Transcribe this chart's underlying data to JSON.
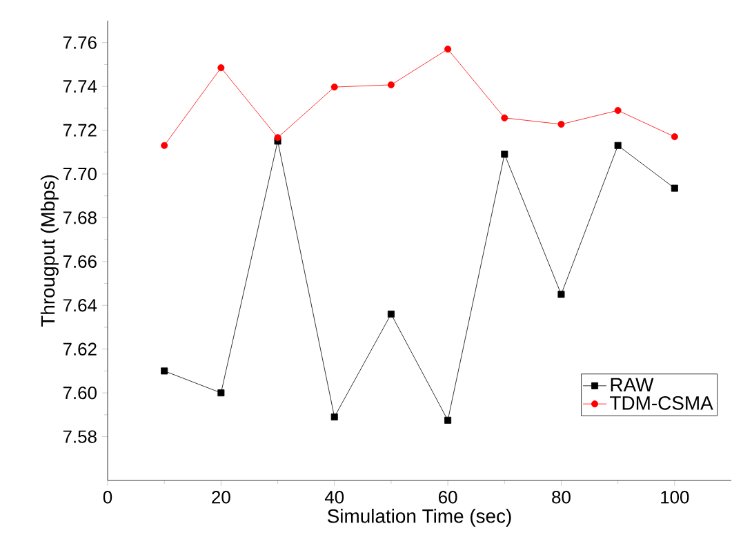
{
  "chart_data": {
    "type": "line",
    "xlabel": "Simulation Time (sec)",
    "ylabel": "Througput (Mbps)",
    "x": [
      10,
      20,
      30,
      40,
      50,
      60,
      70,
      80,
      90,
      100
    ],
    "series": [
      {
        "name": "RAW",
        "color": "#000000",
        "marker": "square",
        "values": [
          7.61,
          7.6,
          7.715,
          7.589,
          7.636,
          7.5875,
          7.709,
          7.645,
          7.713,
          7.6935
        ]
      },
      {
        "name": "TDM-CSMA",
        "color": "#ff0000",
        "marker": "circle",
        "values": [
          7.713,
          7.7485,
          7.7166,
          7.7397,
          7.7407,
          7.757,
          7.7256,
          7.7227,
          7.729,
          7.717
        ]
      }
    ],
    "xlim": [
      0,
      110
    ],
    "xticks": [
      0,
      20,
      40,
      60,
      80,
      100
    ],
    "ylim": [
      7.56,
      7.77
    ],
    "yticks": [
      {
        "value": 7.58,
        "label": "7.58"
      },
      {
        "value": 7.6,
        "label": "7.60"
      },
      {
        "value": 7.62,
        "label": "7.62"
      },
      {
        "value": 7.64,
        "label": "7.64"
      },
      {
        "value": 7.66,
        "label": "7.66"
      },
      {
        "value": 7.68,
        "label": "7.68"
      },
      {
        "value": 7.7,
        "label": "7.70"
      },
      {
        "value": 7.72,
        "label": "7.72"
      },
      {
        "value": 7.74,
        "label": "7.74"
      },
      {
        "value": 7.76,
        "label": "7.76"
      }
    ],
    "grid": false,
    "legend": "bottom right",
    "line_style": "solid"
  }
}
